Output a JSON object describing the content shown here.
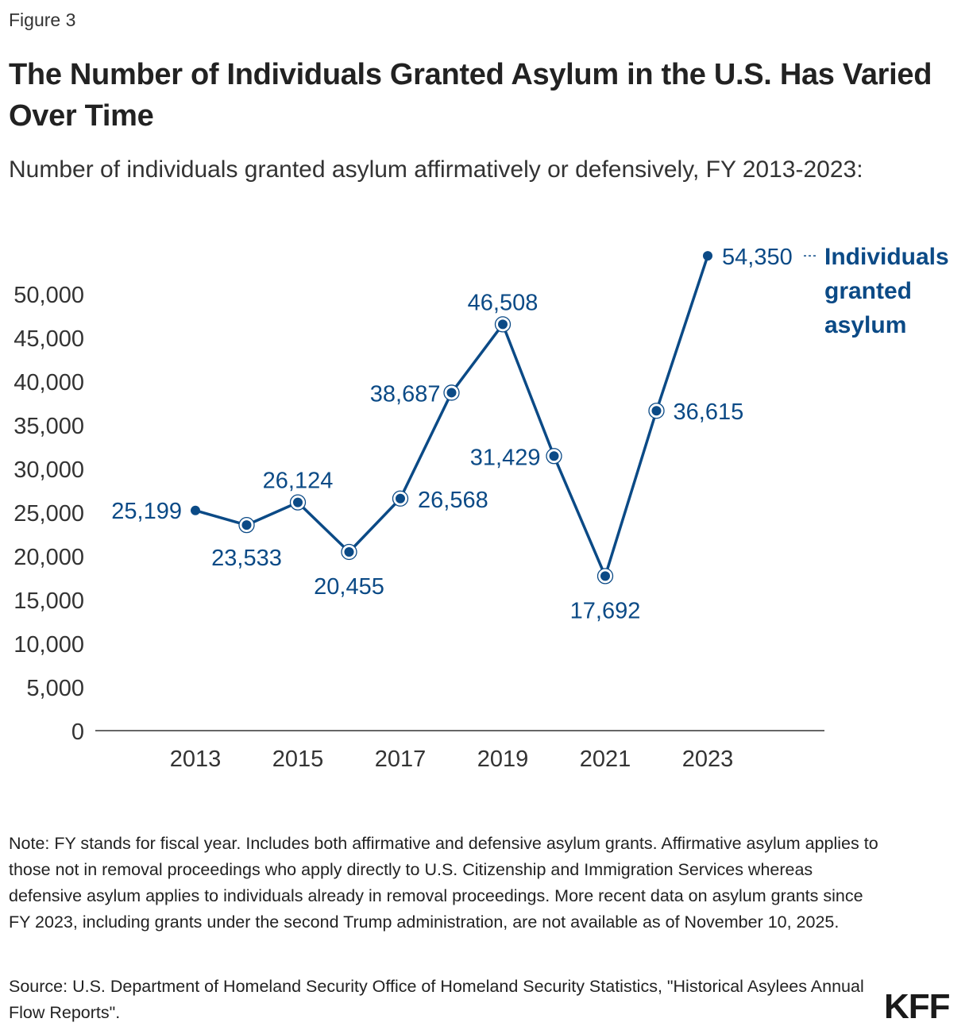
{
  "figure_label": "Figure 3",
  "title": "The Number of Individuals Granted Asylum in the U.S. Has Varied Over Time",
  "subtitle": "Number of individuals granted asylum affirmatively or defensively, FY 2013-2023:",
  "note": "Note: FY stands for fiscal year. Includes both affirmative and defensive asylum grants. Affirmative asylum applies to those not in removal proceedings who apply directly to U.S. Citizenship and Immigration Services whereas defensive asylum applies to individuals already in removal proceedings. More recent data on asylum grants since FY 2023, including grants under the second Trump administration, are not available as of November 10, 2025.",
  "source": "Source: U.S. Department of Homeland Security Office of Homeland Security Statistics, \"Historical Asylees Annual Flow Reports\".",
  "logo": "KFF",
  "chart_data": {
    "type": "line",
    "title": "",
    "xlabel": "",
    "ylabel": "",
    "x": [
      2013,
      2014,
      2015,
      2016,
      2017,
      2018,
      2019,
      2020,
      2021,
      2022,
      2023
    ],
    "series": [
      {
        "name": "Individuals granted asylum",
        "values": [
          25199,
          23533,
          26124,
          20455,
          26568,
          38687,
          46508,
          31429,
          17692,
          36615,
          54350
        ],
        "labels": [
          "25,199",
          "23,533",
          "26,124",
          "20,455",
          "26,568",
          "38,687",
          "46,508",
          "31,429",
          "17,692",
          "36,615",
          "54,350"
        ],
        "color": "#0b4a86"
      }
    ],
    "series_label_lines": [
      "Individuals",
      "granted",
      "asylum"
    ],
    "ylim": [
      0,
      55000
    ],
    "y_ticks": [
      "0",
      "5,000",
      "10,000",
      "15,000",
      "20,000",
      "25,000",
      "30,000",
      "35,000",
      "40,000",
      "45,000",
      "50,000"
    ],
    "x_ticks": [
      "2013",
      "2015",
      "2017",
      "2019",
      "2021",
      "2023"
    ],
    "grid": false,
    "legend": "direct label at line end"
  }
}
